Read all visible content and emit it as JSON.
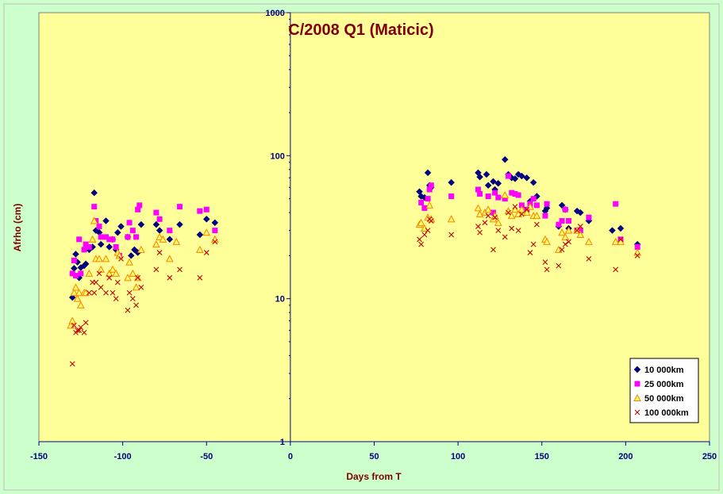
{
  "chart_data": {
    "type": "scatter",
    "title": "C/2008 Q1 (Maticic)",
    "xlabel": "Days from T",
    "ylabel": "Afrho (cm)",
    "xlim": [
      -150,
      250
    ],
    "ylim": [
      1,
      1000
    ],
    "y_scale": "log",
    "x_ticks": [
      "-150",
      "-100",
      "-50",
      "0",
      "50",
      "100",
      "150",
      "200",
      "250"
    ],
    "y_ticks": [
      "1",
      "10",
      "100",
      "1000"
    ],
    "legend_position": "bottom-right",
    "series": [
      {
        "name": "10 000km",
        "color": "#000080",
        "marker": "diamond",
        "x": [
          -130,
          -129,
          -128,
          -127,
          -126,
          -125,
          -123,
          -122,
          -120,
          -118,
          -117,
          -116,
          -114,
          -113,
          -110,
          -108,
          -106,
          -104,
          -103,
          -101,
          -97,
          -95,
          -93,
          -91,
          -89,
          -80,
          -78,
          -72,
          -66,
          -54,
          -50,
          -45,
          77,
          78,
          80,
          82,
          83,
          84,
          96,
          112,
          113,
          117,
          118,
          121,
          122,
          124,
          128,
          130,
          132,
          134,
          136,
          138,
          141,
          143,
          145,
          147,
          152,
          153,
          160,
          162,
          164,
          166,
          171,
          173,
          178,
          192,
          197,
          207
        ],
        "y": [
          10.2,
          16.3,
          20.5,
          18,
          14,
          16.5,
          17,
          17.5,
          22,
          23,
          55,
          30,
          29,
          24,
          35,
          23,
          26,
          22,
          29,
          32,
          27,
          20,
          22,
          21,
          33,
          33,
          30,
          26,
          33,
          28,
          36,
          34,
          56,
          52,
          51,
          76,
          62,
          60,
          65,
          76,
          71,
          74,
          62,
          66,
          58,
          64,
          94,
          74,
          70,
          69,
          74,
          72,
          70,
          48,
          65,
          52,
          41,
          43,
          32,
          45,
          42,
          31,
          41,
          40,
          35,
          30,
          31,
          24
        ]
      },
      {
        "name": "25 000km",
        "color": "#ff00ff",
        "marker": "square",
        "x": [
          -130,
          -129,
          -128,
          -126,
          -125,
          -123,
          -122,
          -120,
          -117,
          -116,
          -114,
          -113,
          -110,
          -108,
          -106,
          -104,
          -102,
          -97,
          -96,
          -94,
          -92,
          -91,
          -90,
          -80,
          -78,
          -72,
          -66,
          -54,
          -50,
          -45,
          78,
          80,
          82,
          83,
          84,
          96,
          112,
          113,
          118,
          121,
          122,
          124,
          128,
          130,
          132,
          134,
          136,
          138,
          141,
          143,
          145,
          147,
          152,
          153,
          160,
          162,
          164,
          166,
          171,
          173,
          178,
          194,
          197,
          207
        ],
        "y": [
          15,
          18.5,
          14.5,
          26,
          15,
          22,
          24,
          23,
          44,
          35,
          32,
          27,
          27,
          26,
          26,
          23,
          20,
          27,
          34,
          30,
          27,
          42,
          45,
          40,
          36,
          30,
          44,
          41,
          42,
          30,
          47,
          43,
          50,
          58,
          62,
          52,
          58,
          54,
          52,
          40,
          55,
          51,
          50,
          72,
          55,
          54,
          53,
          45,
          42,
          46,
          50,
          45,
          38,
          46,
          33,
          35,
          42,
          35,
          30,
          30,
          37,
          46,
          26,
          23
        ]
      },
      {
        "name": "50 000km",
        "color": "#ff8000",
        "marker": "triangle",
        "x": [
          -131,
          -130,
          -129,
          -128,
          -127,
          -126,
          -125,
          -123,
          -122,
          -120,
          -118,
          -117,
          -116,
          -114,
          -113,
          -110,
          -108,
          -106,
          -104,
          -103,
          -102,
          -97,
          -96,
          -94,
          -92,
          -91,
          -89,
          -80,
          -78,
          -76,
          -72,
          -68,
          -54,
          -50,
          -45,
          77,
          78,
          80,
          82,
          83,
          84,
          96,
          112,
          113,
          116,
          118,
          121,
          122,
          124,
          128,
          130,
          132,
          134,
          136,
          138,
          141,
          143,
          145,
          147,
          152,
          153,
          160,
          162,
          164,
          166,
          171,
          173,
          178,
          194,
          197,
          207
        ],
        "y": [
          6.5,
          7,
          11,
          12,
          10,
          11,
          9,
          11,
          11,
          15,
          26,
          35,
          19,
          19,
          16,
          19,
          15,
          16,
          15,
          21,
          20,
          14,
          18,
          15,
          12,
          14,
          22,
          24,
          27,
          26,
          19,
          25,
          22,
          29,
          26,
          33,
          34,
          31,
          37,
          45,
          36,
          36,
          43,
          39,
          40,
          42,
          36,
          38,
          34,
          53,
          41,
          38,
          42,
          39,
          42,
          40,
          44,
          38,
          38,
          26,
          25,
          22,
          29,
          27,
          30,
          30,
          28,
          25,
          25,
          25,
          21
        ]
      },
      {
        "name": "100 000km",
        "color": "#c00000",
        "marker": "x",
        "x": [
          -130,
          -129,
          -128,
          -127,
          -126,
          -125,
          -123,
          -122,
          -120,
          -118,
          -117,
          -116,
          -114,
          -113,
          -110,
          -108,
          -106,
          -104,
          -103,
          -101,
          -97,
          -96,
          -94,
          -92,
          -91,
          -89,
          -80,
          -78,
          -72,
          -66,
          -54,
          -50,
          -45,
          77,
          78,
          80,
          82,
          83,
          84,
          96,
          112,
          113,
          116,
          118,
          121,
          122,
          124,
          128,
          130,
          132,
          134,
          136,
          138,
          141,
          143,
          145,
          147,
          152,
          153,
          160,
          162,
          164,
          166,
          171,
          173,
          178,
          194,
          197,
          207
        ],
        "y": [
          3.5,
          6.5,
          5.8,
          6,
          6,
          6.3,
          5.8,
          6.8,
          11,
          13,
          11,
          13,
          15,
          12,
          11,
          14,
          11,
          10,
          13,
          19,
          8.3,
          11,
          10,
          9,
          14,
          12,
          16,
          21,
          14,
          16,
          14,
          21,
          25,
          26,
          24,
          28,
          30,
          36,
          35,
          28,
          32,
          29,
          34,
          38,
          22,
          37,
          30,
          27,
          40,
          31,
          44,
          30,
          39,
          42,
          21,
          24,
          33,
          18,
          16,
          17,
          22,
          24,
          25,
          30,
          32,
          19,
          16,
          26,
          20
        ]
      }
    ]
  }
}
